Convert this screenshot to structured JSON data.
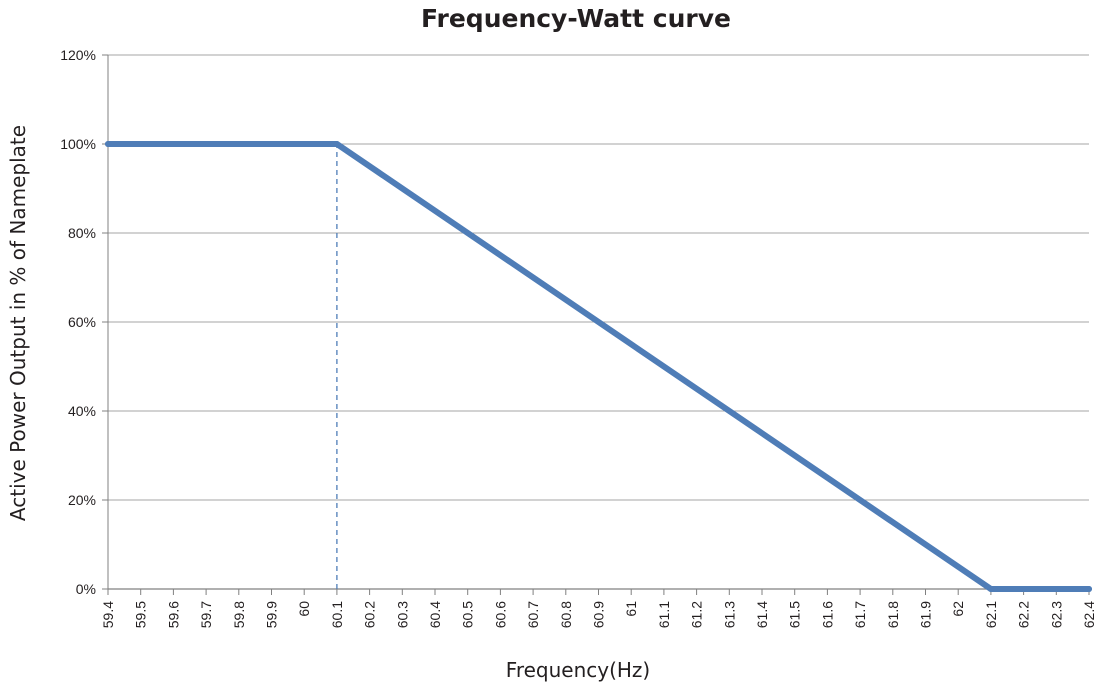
{
  "chart_data": {
    "type": "line",
    "title": "Frequency-Watt curve",
    "xlabel": "Frequency(Hz)",
    "ylabel": "Active Power Output in % of Nameplate",
    "xlim": [
      59.4,
      62.4
    ],
    "ylim": [
      0,
      120
    ],
    "x_ticks": [
      "59.4",
      "59.5",
      "59.6",
      "59.7",
      "59.8",
      "59.9",
      "60",
      "60.1",
      "60.2",
      "60.3",
      "60.4",
      "60.5",
      "60.6",
      "60.7",
      "60.8",
      "60.9",
      "61",
      "61.1",
      "61.2",
      "61.3",
      "61.4",
      "61.5",
      "61.6",
      "61.7",
      "61.8",
      "61.9",
      "62",
      "62.1",
      "62.2",
      "62.3",
      "62.4"
    ],
    "y_ticks": [
      0,
      20,
      40,
      60,
      80,
      100,
      120
    ],
    "y_tick_labels": [
      "0%",
      "20%",
      "40%",
      "60%",
      "80%",
      "100%",
      "120%"
    ],
    "grid": "horizontal",
    "series": [
      {
        "x": [
          59.4,
          60.1,
          62.1,
          62.4
        ],
        "y": [
          100,
          100,
          0,
          0
        ],
        "color": "#4f7db7"
      }
    ],
    "reference_line": {
      "x": 60.1,
      "y_from": 0,
      "y_to": 100,
      "style": "dashed",
      "color": "#4f7db7"
    }
  }
}
